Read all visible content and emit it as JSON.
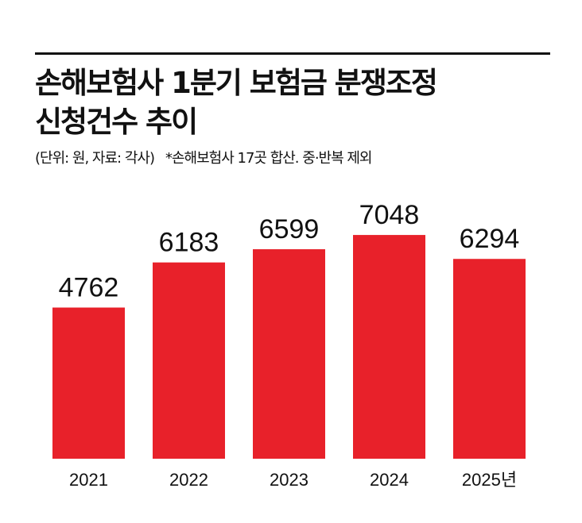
{
  "header": {
    "title_line1": "손해보험사 1분기 보험금 분쟁조정",
    "title_line2": "신청건수 추이",
    "unit_source": "(단위: 원, 자료: 각사)",
    "note": "*손해보험사 17곳 합산. 중·반복 제외"
  },
  "colors": {
    "bar": "#e8212a",
    "rule": "#111111",
    "text": "#111111"
  },
  "chart_data": {
    "type": "bar",
    "title": "손해보험사 1분기 보험금 분쟁조정 신청건수 추이",
    "categories": [
      "2021",
      "2022",
      "2023",
      "2024",
      "2025년"
    ],
    "values": [
      4762,
      6183,
      6599,
      7048,
      6294
    ],
    "data_labels": [
      "4762",
      "6183",
      "6599",
      "7048",
      "6294"
    ],
    "xlabel": "",
    "ylabel": "",
    "ylim": [
      0,
      8400
    ],
    "grid": false,
    "legend": "none"
  }
}
